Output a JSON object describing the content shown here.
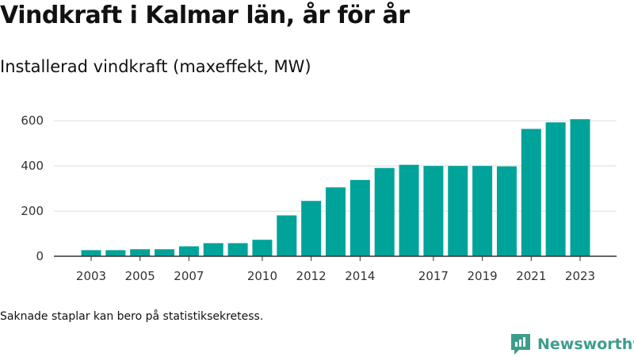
{
  "title": "Vindkraft i Kalmar län, år för år",
  "subtitle": "Installerad vindkraft (maxeffekt, MW)",
  "note": "Saknade staplar kan bero på statistiksekretess.",
  "brand": {
    "name": "Newsworthy",
    "color": "#3d9d8d"
  },
  "colors": {
    "bar": "#00a39a",
    "grid": "#dddddd",
    "axis": "#333333"
  },
  "chart_data": {
    "type": "bar",
    "categories": [
      "2003",
      "2004",
      "2005",
      "2006",
      "2007",
      "2008",
      "2009",
      "2010",
      "2011",
      "2012",
      "2013",
      "2014",
      "2015",
      "2016",
      "2017",
      "2018",
      "2019",
      "2020",
      "2021",
      "2022",
      "2023"
    ],
    "values": [
      27,
      27,
      31,
      31,
      44,
      58,
      58,
      73,
      181,
      245,
      305,
      338,
      391,
      405,
      400,
      400,
      400,
      398,
      564,
      593,
      607
    ],
    "xticks": [
      "2003",
      "2005",
      "2007",
      "2010",
      "2012",
      "2014",
      "2017",
      "2019",
      "2021",
      "2023"
    ],
    "yticks": [
      0,
      200,
      400,
      600
    ],
    "ylim": [
      0,
      650
    ],
    "grid": true,
    "xlabel": "",
    "ylabel": ""
  }
}
